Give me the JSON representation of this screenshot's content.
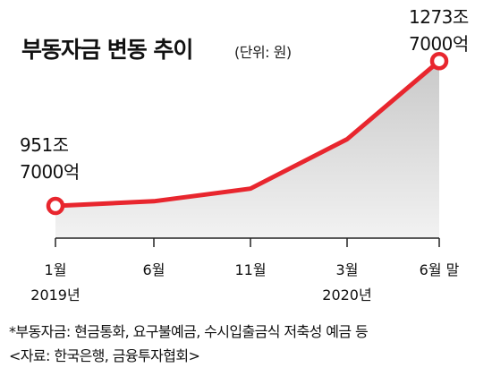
{
  "chart_data": {
    "type": "area",
    "title": "부동자금 변동 추이",
    "subtitle": "(단위: 원)",
    "categories": [
      "1월",
      "6월",
      "11월",
      "3월",
      "6월 말"
    ],
    "category_years": [
      "2019년",
      "",
      "",
      "2020년",
      ""
    ],
    "series": [
      {
        "values": [
          951.7,
          962,
          990,
          1100,
          1273.7
        ]
      }
    ],
    "ylim": [
      880,
      1290
    ],
    "grid": false,
    "annotations": [
      {
        "lines": [
          "951조",
          "7000억"
        ]
      },
      {
        "lines": [
          "1273조",
          "7000억"
        ]
      }
    ],
    "colors": {
      "line": "#e8262e",
      "area_top": "#c9c9c9",
      "area_bottom": "#f2f2f2",
      "marker_fill": "#ffffff",
      "axis": "#222222"
    }
  },
  "footnote": {
    "note": "*부동자금: 현금통화, 요구불예금, 수시입출금식 저축성 예금 등",
    "source": "<자료: 한국은행, 금융투자협회>"
  }
}
